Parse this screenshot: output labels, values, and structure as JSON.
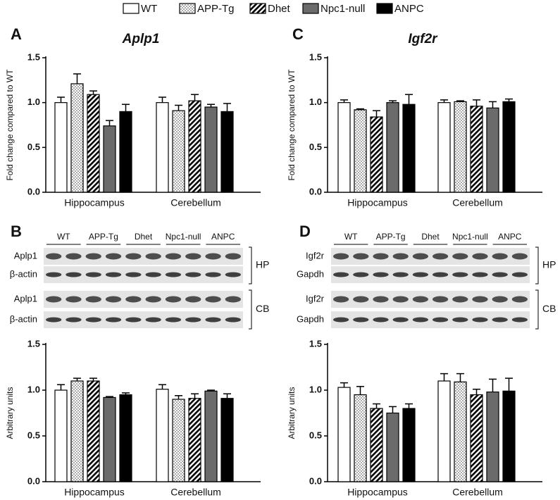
{
  "legend": [
    {
      "name": "WT",
      "fill": "white"
    },
    {
      "name": "APP-Tg",
      "fill": "dots"
    },
    {
      "name": "Dhet",
      "fill": "hatch"
    },
    {
      "name": "Npc1-null",
      "fill": "#6b6b6b"
    },
    {
      "name": "ANPC",
      "fill": "#000000"
    }
  ],
  "blots": [
    {
      "panel": "B",
      "lanes": [
        "WT",
        "APP-Tg",
        "Dhet",
        "Npc1-null",
        "ANPC"
      ],
      "rows": [
        "Aplp1",
        "β-actin",
        "Aplp1",
        "β-actin"
      ],
      "regions": [
        "HP",
        "CB"
      ]
    },
    {
      "panel": "D",
      "lanes": [
        "WT",
        "APP-Tg",
        "Dhet",
        "Npc1-null",
        "ANPC"
      ],
      "rows": [
        "Igf2r",
        "Gapdh",
        "Igf2r",
        "Gapdh"
      ],
      "regions": [
        "HP",
        "CB"
      ]
    }
  ],
  "chart_data": [
    {
      "type": "bar",
      "panel": "A",
      "title": "Aplp1",
      "y_label": "Fold change compared to WT",
      "categories": [
        "Hippocampus",
        "Cerebellum"
      ],
      "ylim": [
        0,
        1.5
      ],
      "yticks": [
        {
          "value": 0,
          "label": "0.0"
        },
        0.5,
        {
          "value": 1,
          "label": "1.0"
        },
        1.5
      ],
      "series": [
        {
          "values": [
            1.0,
            1.0
          ],
          "errors": [
            0.06,
            0.06
          ]
        },
        {
          "values": [
            1.21,
            0.91
          ],
          "errors": [
            0.11,
            0.06
          ]
        },
        {
          "values": [
            1.09,
            1.02
          ],
          "errors": [
            0.04,
            0.07
          ]
        },
        {
          "values": [
            0.74,
            0.95
          ],
          "errors": [
            0.06,
            0.03
          ]
        },
        {
          "values": [
            0.9,
            0.9
          ],
          "errors": [
            0.08,
            0.09
          ]
        }
      ]
    },
    {
      "type": "bar",
      "panel": "C",
      "title": "Igf2r",
      "y_label": "Fold change compared to WT",
      "categories": [
        "Hippocampus",
        "Cerebellum"
      ],
      "ylim": [
        0,
        1.5
      ],
      "yticks": [
        {
          "value": 0,
          "label": "0.0"
        },
        0.5,
        {
          "value": 1,
          "label": "1.0"
        },
        1.5
      ],
      "series": [
        {
          "values": [
            1.0,
            1.0
          ],
          "errors": [
            0.03,
            0.03
          ]
        },
        {
          "values": [
            0.92,
            1.01
          ],
          "errors": [
            0.01,
            0.01
          ]
        },
        {
          "values": [
            0.84,
            0.96
          ],
          "errors": [
            0.07,
            0.07
          ]
        },
        {
          "values": [
            1.0,
            0.94
          ],
          "errors": [
            0.02,
            0.07
          ]
        },
        {
          "values": [
            0.98,
            1.01
          ],
          "errors": [
            0.11,
            0.03
          ]
        }
      ]
    },
    {
      "type": "bar",
      "y_label": "Arbitrary units",
      "categories": [
        "Hippocampus",
        "Cerebellum"
      ],
      "ylim": [
        0,
        1.5
      ],
      "yticks": [
        {
          "value": 0,
          "label": "0.0"
        },
        0.5,
        {
          "value": 1,
          "label": "1.0"
        },
        1.5
      ],
      "series": [
        {
          "values": [
            1.0,
            1.01
          ],
          "errors": [
            0.06,
            0.05
          ]
        },
        {
          "values": [
            1.1,
            0.9
          ],
          "errors": [
            0.03,
            0.04
          ]
        },
        {
          "values": [
            1.1,
            0.91
          ],
          "errors": [
            0.03,
            0.05
          ]
        },
        {
          "values": [
            0.92,
            0.99
          ],
          "errors": [
            0.01,
            0.01
          ]
        },
        {
          "values": [
            0.95,
            0.91
          ],
          "errors": [
            0.02,
            0.05
          ]
        }
      ]
    },
    {
      "type": "bar",
      "y_label": "Arbitrary units",
      "categories": [
        "Hippocampus",
        "Cerebellum"
      ],
      "ylim": [
        0,
        1.5
      ],
      "yticks": [
        {
          "value": 0,
          "label": "0.0"
        },
        0.5,
        {
          "value": 1,
          "label": "1.0"
        },
        1.5
      ],
      "series": [
        {
          "values": [
            1.03,
            1.1
          ],
          "errors": [
            0.05,
            0.08
          ]
        },
        {
          "values": [
            0.95,
            1.09
          ],
          "errors": [
            0.09,
            0.09
          ]
        },
        {
          "values": [
            0.8,
            0.95
          ],
          "errors": [
            0.05,
            0.06
          ]
        },
        {
          "values": [
            0.75,
            0.98
          ],
          "errors": [
            0.07,
            0.14
          ]
        },
        {
          "values": [
            0.8,
            0.99
          ],
          "errors": [
            0.05,
            0.14
          ]
        }
      ]
    }
  ]
}
